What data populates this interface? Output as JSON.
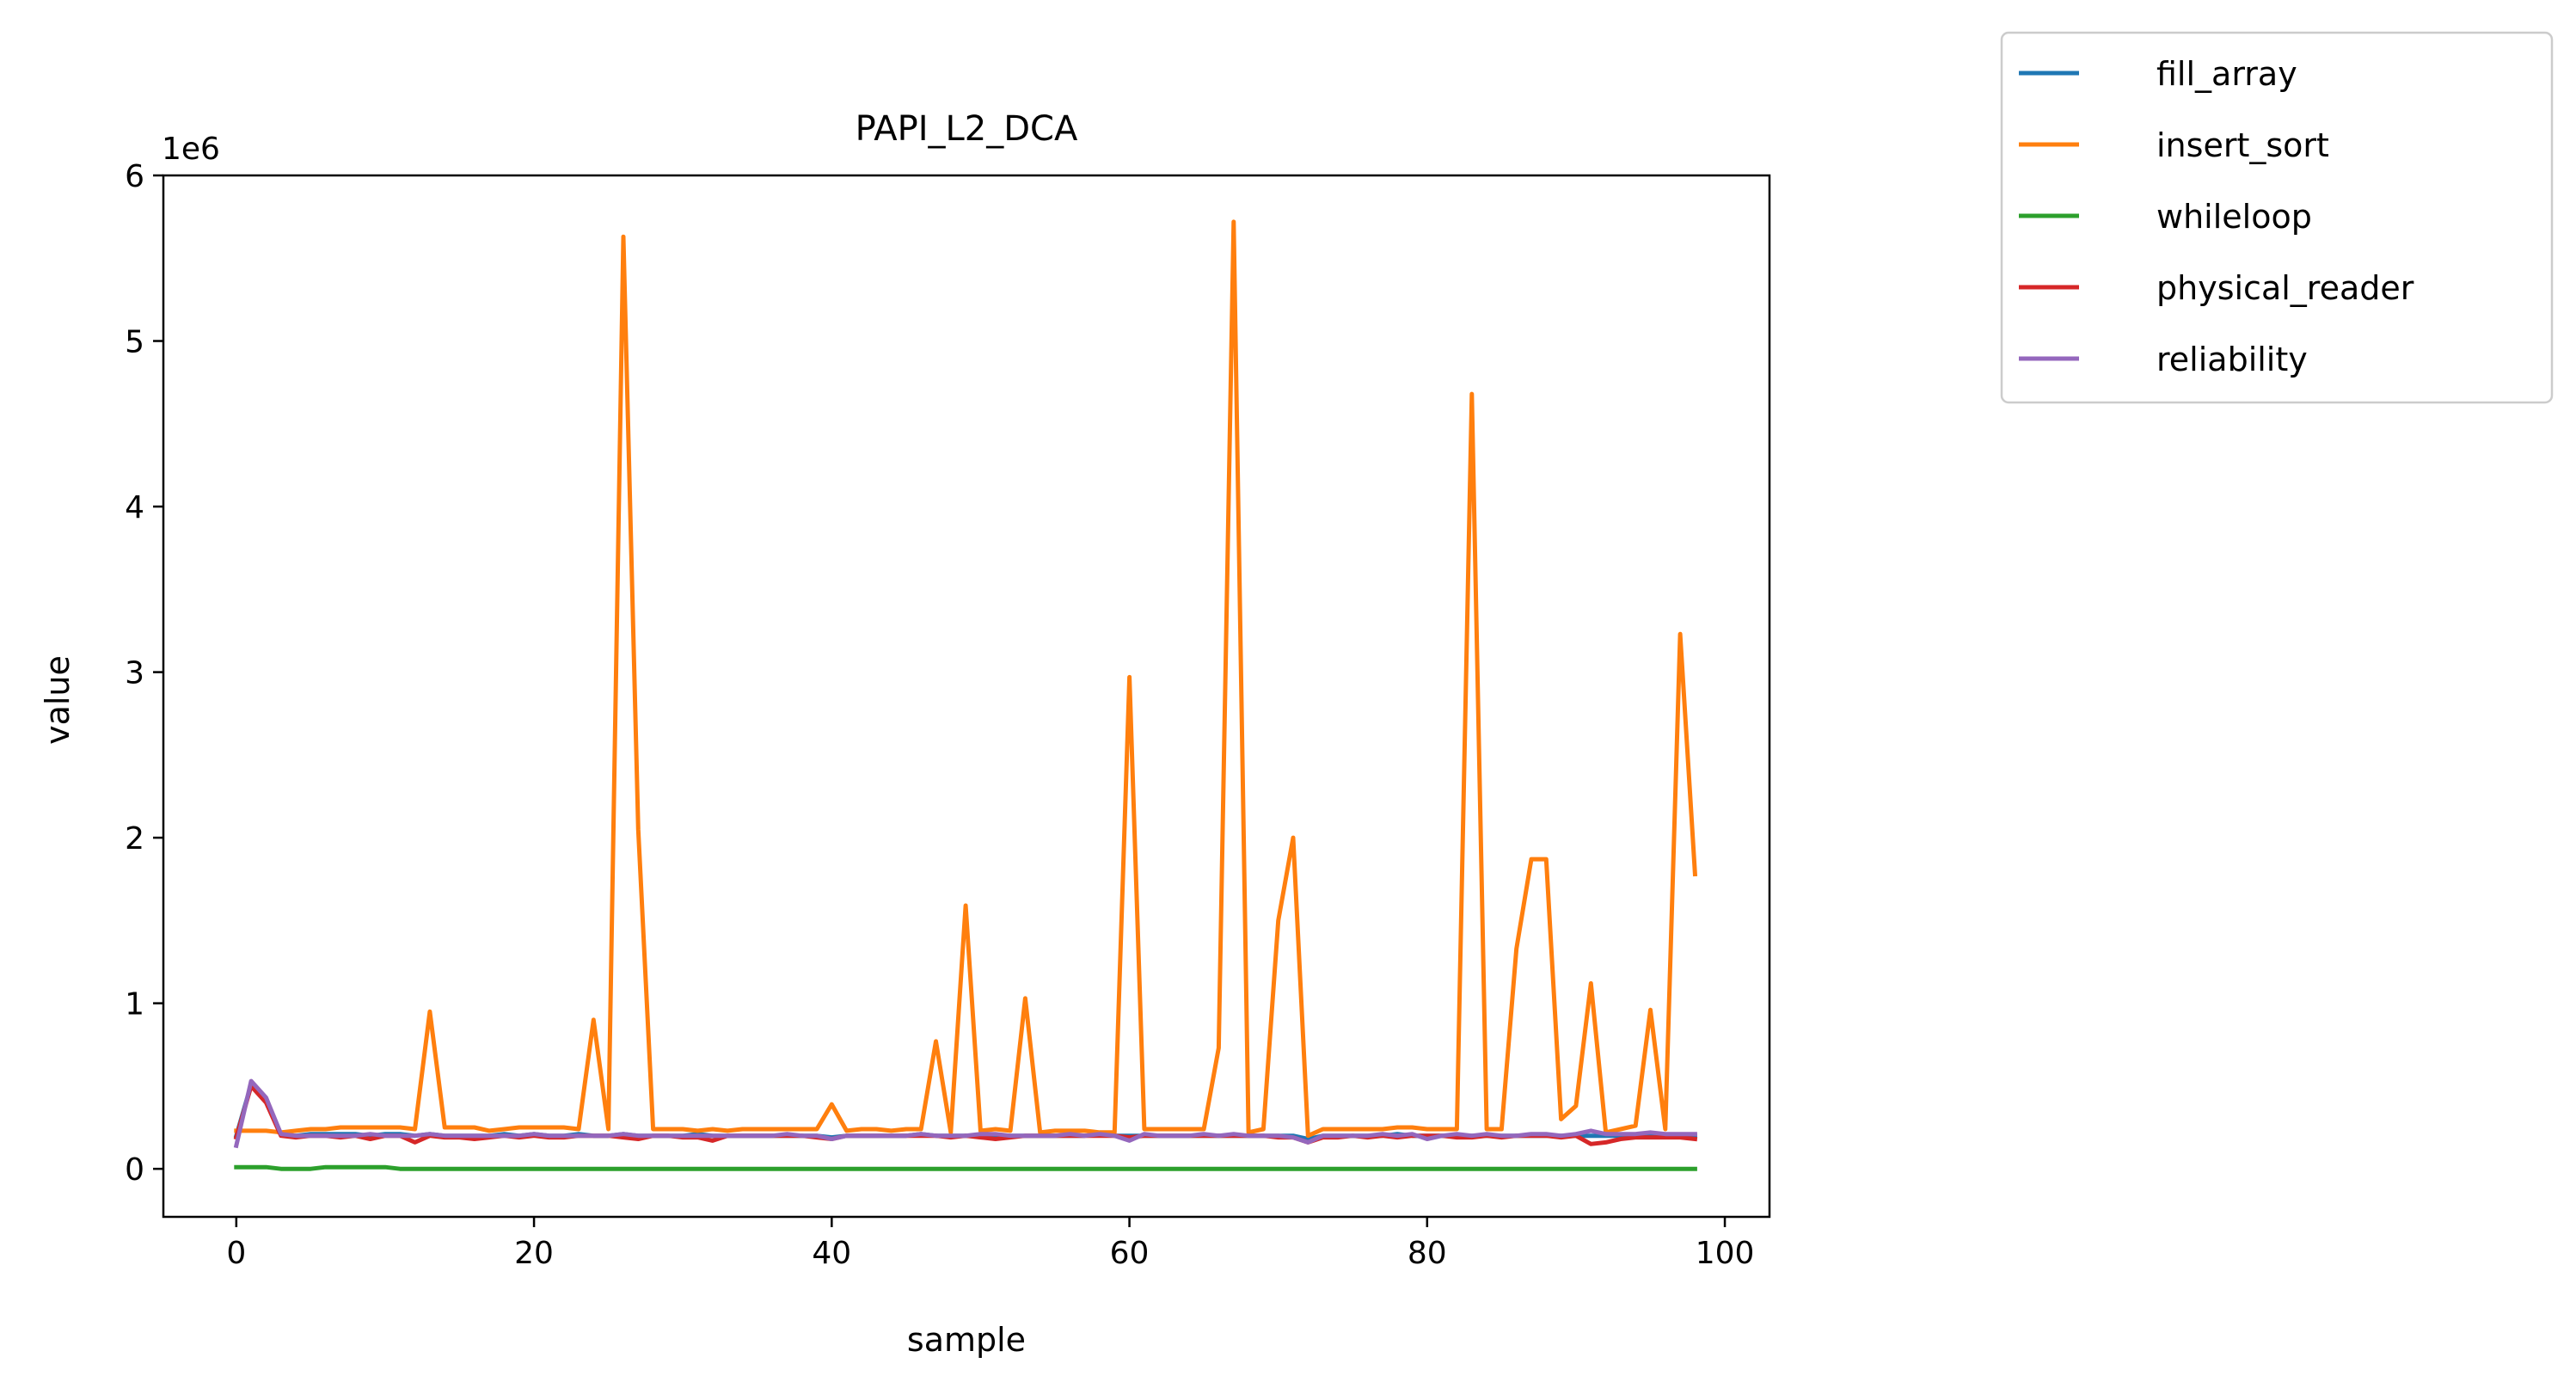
{
  "chart_data": {
    "type": "line",
    "title": "PAPI_L2_DCA",
    "xlabel": "sample",
    "ylabel": "value",
    "scale_label": "1e6",
    "xlim": [
      -4.9,
      103
    ],
    "ylim": [
      -0.29,
      6.0
    ],
    "xticks": [
      0,
      20,
      40,
      60,
      80,
      100
    ],
    "yticks": [
      0,
      1,
      2,
      3,
      4,
      5,
      6
    ],
    "legend_position": "outside upper right",
    "grid": false,
    "series": [
      {
        "name": "fill_array",
        "color": "#1f77b4",
        "values": [
          0.2,
          0.51,
          0.42,
          0.21,
          0.2,
          0.21,
          0.21,
          0.21,
          0.21,
          0.2,
          0.21,
          0.21,
          0.2,
          0.21,
          0.2,
          0.2,
          0.2,
          0.2,
          0.21,
          0.2,
          0.21,
          0.2,
          0.2,
          0.21,
          0.2,
          0.2,
          0.21,
          0.2,
          0.2,
          0.2,
          0.2,
          0.21,
          0.2,
          0.2,
          0.2,
          0.2,
          0.2,
          0.2,
          0.2,
          0.2,
          0.19,
          0.2,
          0.2,
          0.2,
          0.2,
          0.2,
          0.21,
          0.2,
          0.2,
          0.2,
          0.2,
          0.2,
          0.2,
          0.2,
          0.2,
          0.2,
          0.2,
          0.2,
          0.21,
          0.2,
          0.2,
          0.2,
          0.2,
          0.2,
          0.2,
          0.2,
          0.2,
          0.2,
          0.2,
          0.2,
          0.2,
          0.2,
          0.18,
          0.2,
          0.2,
          0.2,
          0.2,
          0.2,
          0.21,
          0.2,
          0.2,
          0.2,
          0.2,
          0.2,
          0.2,
          0.2,
          0.2,
          0.2,
          0.2,
          0.2,
          0.2,
          0.2,
          0.2,
          0.2,
          0.2,
          0.2,
          0.2,
          0.2,
          0.2
        ]
      },
      {
        "name": "insert_sort",
        "color": "#ff7f0e",
        "values": [
          0.23,
          0.23,
          0.23,
          0.22,
          0.23,
          0.24,
          0.24,
          0.25,
          0.25,
          0.25,
          0.25,
          0.25,
          0.24,
          0.95,
          0.25,
          0.25,
          0.25,
          0.23,
          0.24,
          0.25,
          0.25,
          0.25,
          0.25,
          0.24,
          0.9,
          0.24,
          5.63,
          2.05,
          0.24,
          0.24,
          0.24,
          0.23,
          0.24,
          0.23,
          0.24,
          0.24,
          0.24,
          0.24,
          0.24,
          0.24,
          0.39,
          0.23,
          0.24,
          0.24,
          0.23,
          0.24,
          0.24,
          0.77,
          0.22,
          1.59,
          0.23,
          0.24,
          0.23,
          1.03,
          0.22,
          0.23,
          0.23,
          0.23,
          0.22,
          0.22,
          2.97,
          0.24,
          0.24,
          0.24,
          0.24,
          0.24,
          0.73,
          5.72,
          0.22,
          0.24,
          1.5,
          2.0,
          0.2,
          0.24,
          0.24,
          0.24,
          0.24,
          0.24,
          0.25,
          0.25,
          0.24,
          0.24,
          0.24,
          4.68,
          0.24,
          0.24,
          1.33,
          1.87,
          1.87,
          0.3,
          0.38,
          1.12,
          0.22,
          0.24,
          0.26,
          0.96,
          0.24,
          3.23,
          1.78
        ]
      },
      {
        "name": "whileloop",
        "color": "#2ca02c",
        "values": [
          0.01,
          0.01,
          0.01,
          0.0,
          0.0,
          0.0,
          0.01,
          0.01,
          0.01,
          0.01,
          0.01,
          0.0,
          0.0,
          0.0,
          0.0,
          0.0,
          0.0,
          0.0,
          0.0,
          0.0,
          0.0,
          0.0,
          0.0,
          0.0,
          0.0,
          0.0,
          0.0,
          0.0,
          0.0,
          0.0,
          0.0,
          0.0,
          0.0,
          0.0,
          0.0,
          0.0,
          0.0,
          0.0,
          0.0,
          0.0,
          0.0,
          0.0,
          0.0,
          0.0,
          0.0,
          0.0,
          0.0,
          0.0,
          0.0,
          0.0,
          0.0,
          0.0,
          0.0,
          0.0,
          0.0,
          0.0,
          0.0,
          0.0,
          0.0,
          0.0,
          0.0,
          0.0,
          0.0,
          0.0,
          0.0,
          0.0,
          0.0,
          0.0,
          0.0,
          0.0,
          0.0,
          0.0,
          0.0,
          0.0,
          0.0,
          0.0,
          0.0,
          0.0,
          0.0,
          0.0,
          0.0,
          0.0,
          0.0,
          0.0,
          0.0,
          0.0,
          0.0,
          0.0,
          0.0,
          0.0,
          0.0,
          0.0,
          0.0,
          0.0,
          0.0,
          0.0,
          0.0,
          0.0,
          0.0
        ]
      },
      {
        "name": "physical_reader",
        "color": "#d62728",
        "values": [
          0.19,
          0.5,
          0.4,
          0.2,
          0.19,
          0.2,
          0.2,
          0.19,
          0.2,
          0.18,
          0.2,
          0.2,
          0.16,
          0.2,
          0.19,
          0.19,
          0.18,
          0.19,
          0.2,
          0.19,
          0.2,
          0.19,
          0.19,
          0.2,
          0.2,
          0.2,
          0.19,
          0.18,
          0.2,
          0.2,
          0.19,
          0.19,
          0.17,
          0.2,
          0.2,
          0.2,
          0.2,
          0.2,
          0.2,
          0.19,
          0.18,
          0.2,
          0.2,
          0.2,
          0.2,
          0.2,
          0.2,
          0.2,
          0.19,
          0.2,
          0.19,
          0.18,
          0.19,
          0.2,
          0.2,
          0.2,
          0.2,
          0.2,
          0.2,
          0.2,
          0.19,
          0.2,
          0.2,
          0.2,
          0.2,
          0.2,
          0.2,
          0.2,
          0.2,
          0.2,
          0.19,
          0.19,
          0.16,
          0.19,
          0.19,
          0.2,
          0.19,
          0.2,
          0.19,
          0.2,
          0.2,
          0.2,
          0.19,
          0.19,
          0.2,
          0.19,
          0.2,
          0.2,
          0.2,
          0.19,
          0.2,
          0.15,
          0.16,
          0.18,
          0.19,
          0.19,
          0.19,
          0.19,
          0.18
        ]
      },
      {
        "name": "reliability",
        "color": "#9467bd",
        "values": [
          0.14,
          0.53,
          0.43,
          0.21,
          0.2,
          0.2,
          0.2,
          0.2,
          0.2,
          0.21,
          0.2,
          0.2,
          0.2,
          0.21,
          0.2,
          0.2,
          0.2,
          0.2,
          0.2,
          0.2,
          0.21,
          0.2,
          0.2,
          0.2,
          0.2,
          0.2,
          0.21,
          0.2,
          0.2,
          0.2,
          0.2,
          0.2,
          0.2,
          0.2,
          0.2,
          0.2,
          0.2,
          0.21,
          0.2,
          0.2,
          0.18,
          0.2,
          0.2,
          0.2,
          0.2,
          0.2,
          0.21,
          0.2,
          0.2,
          0.2,
          0.21,
          0.21,
          0.2,
          0.2,
          0.2,
          0.2,
          0.21,
          0.2,
          0.21,
          0.2,
          0.17,
          0.21,
          0.2,
          0.2,
          0.2,
          0.21,
          0.2,
          0.21,
          0.2,
          0.2,
          0.2,
          0.19,
          0.16,
          0.2,
          0.2,
          0.2,
          0.2,
          0.21,
          0.2,
          0.21,
          0.18,
          0.2,
          0.21,
          0.2,
          0.21,
          0.2,
          0.2,
          0.21,
          0.21,
          0.2,
          0.21,
          0.23,
          0.21,
          0.21,
          0.21,
          0.22,
          0.21,
          0.21,
          0.21
        ]
      }
    ]
  }
}
